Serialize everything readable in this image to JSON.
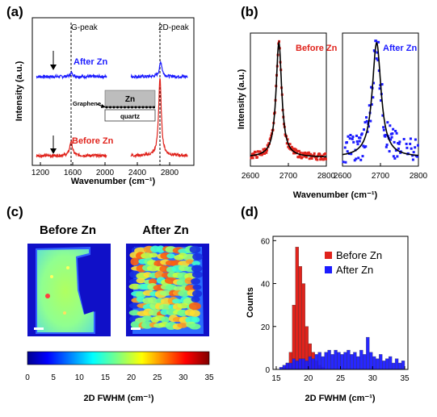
{
  "panel_labels": {
    "a": "(a)",
    "b": "(b)",
    "c": "(c)",
    "d": "(d)"
  },
  "colors": {
    "before": "#e0231c",
    "after": "#1c1cff",
    "fit": "#000000"
  },
  "chart_data": [
    {
      "type": "line",
      "panel": "(a)",
      "xlabel": "Wavenumber (cm⁻¹)",
      "ylabel": "Intensity (a.u.)",
      "xlim": [
        1100,
        3100
      ],
      "xticks": [
        "1200",
        "1600",
        "2000",
        "2400",
        "2800"
      ],
      "vlines": [
        {
          "x": 1580,
          "label": "G-peak"
        },
        {
          "x": 2680,
          "label": "2D-peak"
        }
      ],
      "series": [
        {
          "name": "After Zn",
          "peaks": [
            {
              "x": 1585,
              "height": 0.15
            },
            {
              "x": 2690,
              "height": 0.6
            }
          ]
        },
        {
          "name": "Before Zn",
          "peaks": [
            {
              "x": 1580,
              "height": 0.6
            },
            {
              "x": 2680,
              "height": 3.2
            }
          ]
        }
      ],
      "inset": {
        "top": "Zn",
        "middle": "Graphene",
        "bottom": "quartz"
      }
    },
    {
      "type": "scatter",
      "panel": "(b)",
      "xlabel": "Wavenumber (cm⁻¹)",
      "ylabel": "Intensity (a.u.)",
      "subplots": [
        {
          "name": "Before Zn",
          "xlim": [
            2600,
            2800
          ],
          "xticks": [
            "2600",
            "2700",
            "2800"
          ],
          "peak_center": 2675,
          "fwhm": 18
        },
        {
          "name": "After Zn",
          "xlim": [
            2600,
            2800
          ],
          "xticks": [
            "2600",
            "2700",
            "2800"
          ],
          "peak_center": 2690,
          "fwhm": 28
        }
      ]
    },
    {
      "type": "heatmap",
      "panel": "(c)",
      "maps": [
        {
          "title": "Before Zn"
        },
        {
          "title": "After Zn"
        }
      ],
      "colorbar_label": "2D FWHM (cm⁻¹)",
      "colorbar_range": [
        0,
        35
      ],
      "colorbar_ticks": [
        "0",
        "5",
        "10",
        "15",
        "20",
        "25",
        "30",
        "35"
      ]
    },
    {
      "type": "bar",
      "panel": "(d)",
      "xlabel": "2D FWHM (cm⁻¹)",
      "ylabel": "Counts",
      "xlim": [
        14.5,
        35.5
      ],
      "ylim": [
        0,
        62
      ],
      "xticks": [
        "15",
        "20",
        "25",
        "30",
        "35"
      ],
      "yticks": [
        "0",
        "20",
        "40",
        "60"
      ],
      "bin_width": 0.5,
      "series": [
        {
          "name": "Before Zn",
          "bins": [
            [
              16.0,
              1
            ],
            [
              16.5,
              3
            ],
            [
              17.0,
              8
            ],
            [
              17.5,
              30
            ],
            [
              18.0,
              57
            ],
            [
              18.5,
              48
            ],
            [
              19.0,
              40
            ],
            [
              19.5,
              20
            ],
            [
              20.0,
              12
            ],
            [
              20.5,
              8
            ],
            [
              21.0,
              4
            ],
            [
              21.5,
              2
            ],
            [
              22.0,
              1
            ]
          ]
        },
        {
          "name": "After Zn",
          "bins": [
            [
              15.5,
              1
            ],
            [
              16.0,
              2
            ],
            [
              16.5,
              3
            ],
            [
              17.0,
              3
            ],
            [
              17.5,
              5
            ],
            [
              18.0,
              4
            ],
            [
              18.5,
              5
            ],
            [
              19.0,
              5
            ],
            [
              19.5,
              4
            ],
            [
              20.0,
              6
            ],
            [
              20.5,
              5
            ],
            [
              21.0,
              7
            ],
            [
              21.5,
              8
            ],
            [
              22.0,
              6
            ],
            [
              22.5,
              8
            ],
            [
              23.0,
              9
            ],
            [
              23.5,
              7
            ],
            [
              24.0,
              9
            ],
            [
              24.5,
              8
            ],
            [
              25.0,
              7
            ],
            [
              25.5,
              8
            ],
            [
              26.0,
              9
            ],
            [
              26.5,
              7
            ],
            [
              27.0,
              8
            ],
            [
              27.5,
              6
            ],
            [
              28.0,
              9
            ],
            [
              28.5,
              7
            ],
            [
              29.0,
              15
            ],
            [
              29.5,
              8
            ],
            [
              30.0,
              6
            ],
            [
              30.5,
              5
            ],
            [
              31.0,
              7
            ],
            [
              31.5,
              4
            ],
            [
              32.0,
              5
            ],
            [
              32.5,
              6
            ],
            [
              33.0,
              3
            ],
            [
              33.5,
              5
            ],
            [
              34.0,
              3
            ],
            [
              34.5,
              4
            ]
          ]
        }
      ],
      "legend": [
        "Before Zn",
        "After Zn"
      ],
      "legend_placement": "top-right"
    }
  ]
}
